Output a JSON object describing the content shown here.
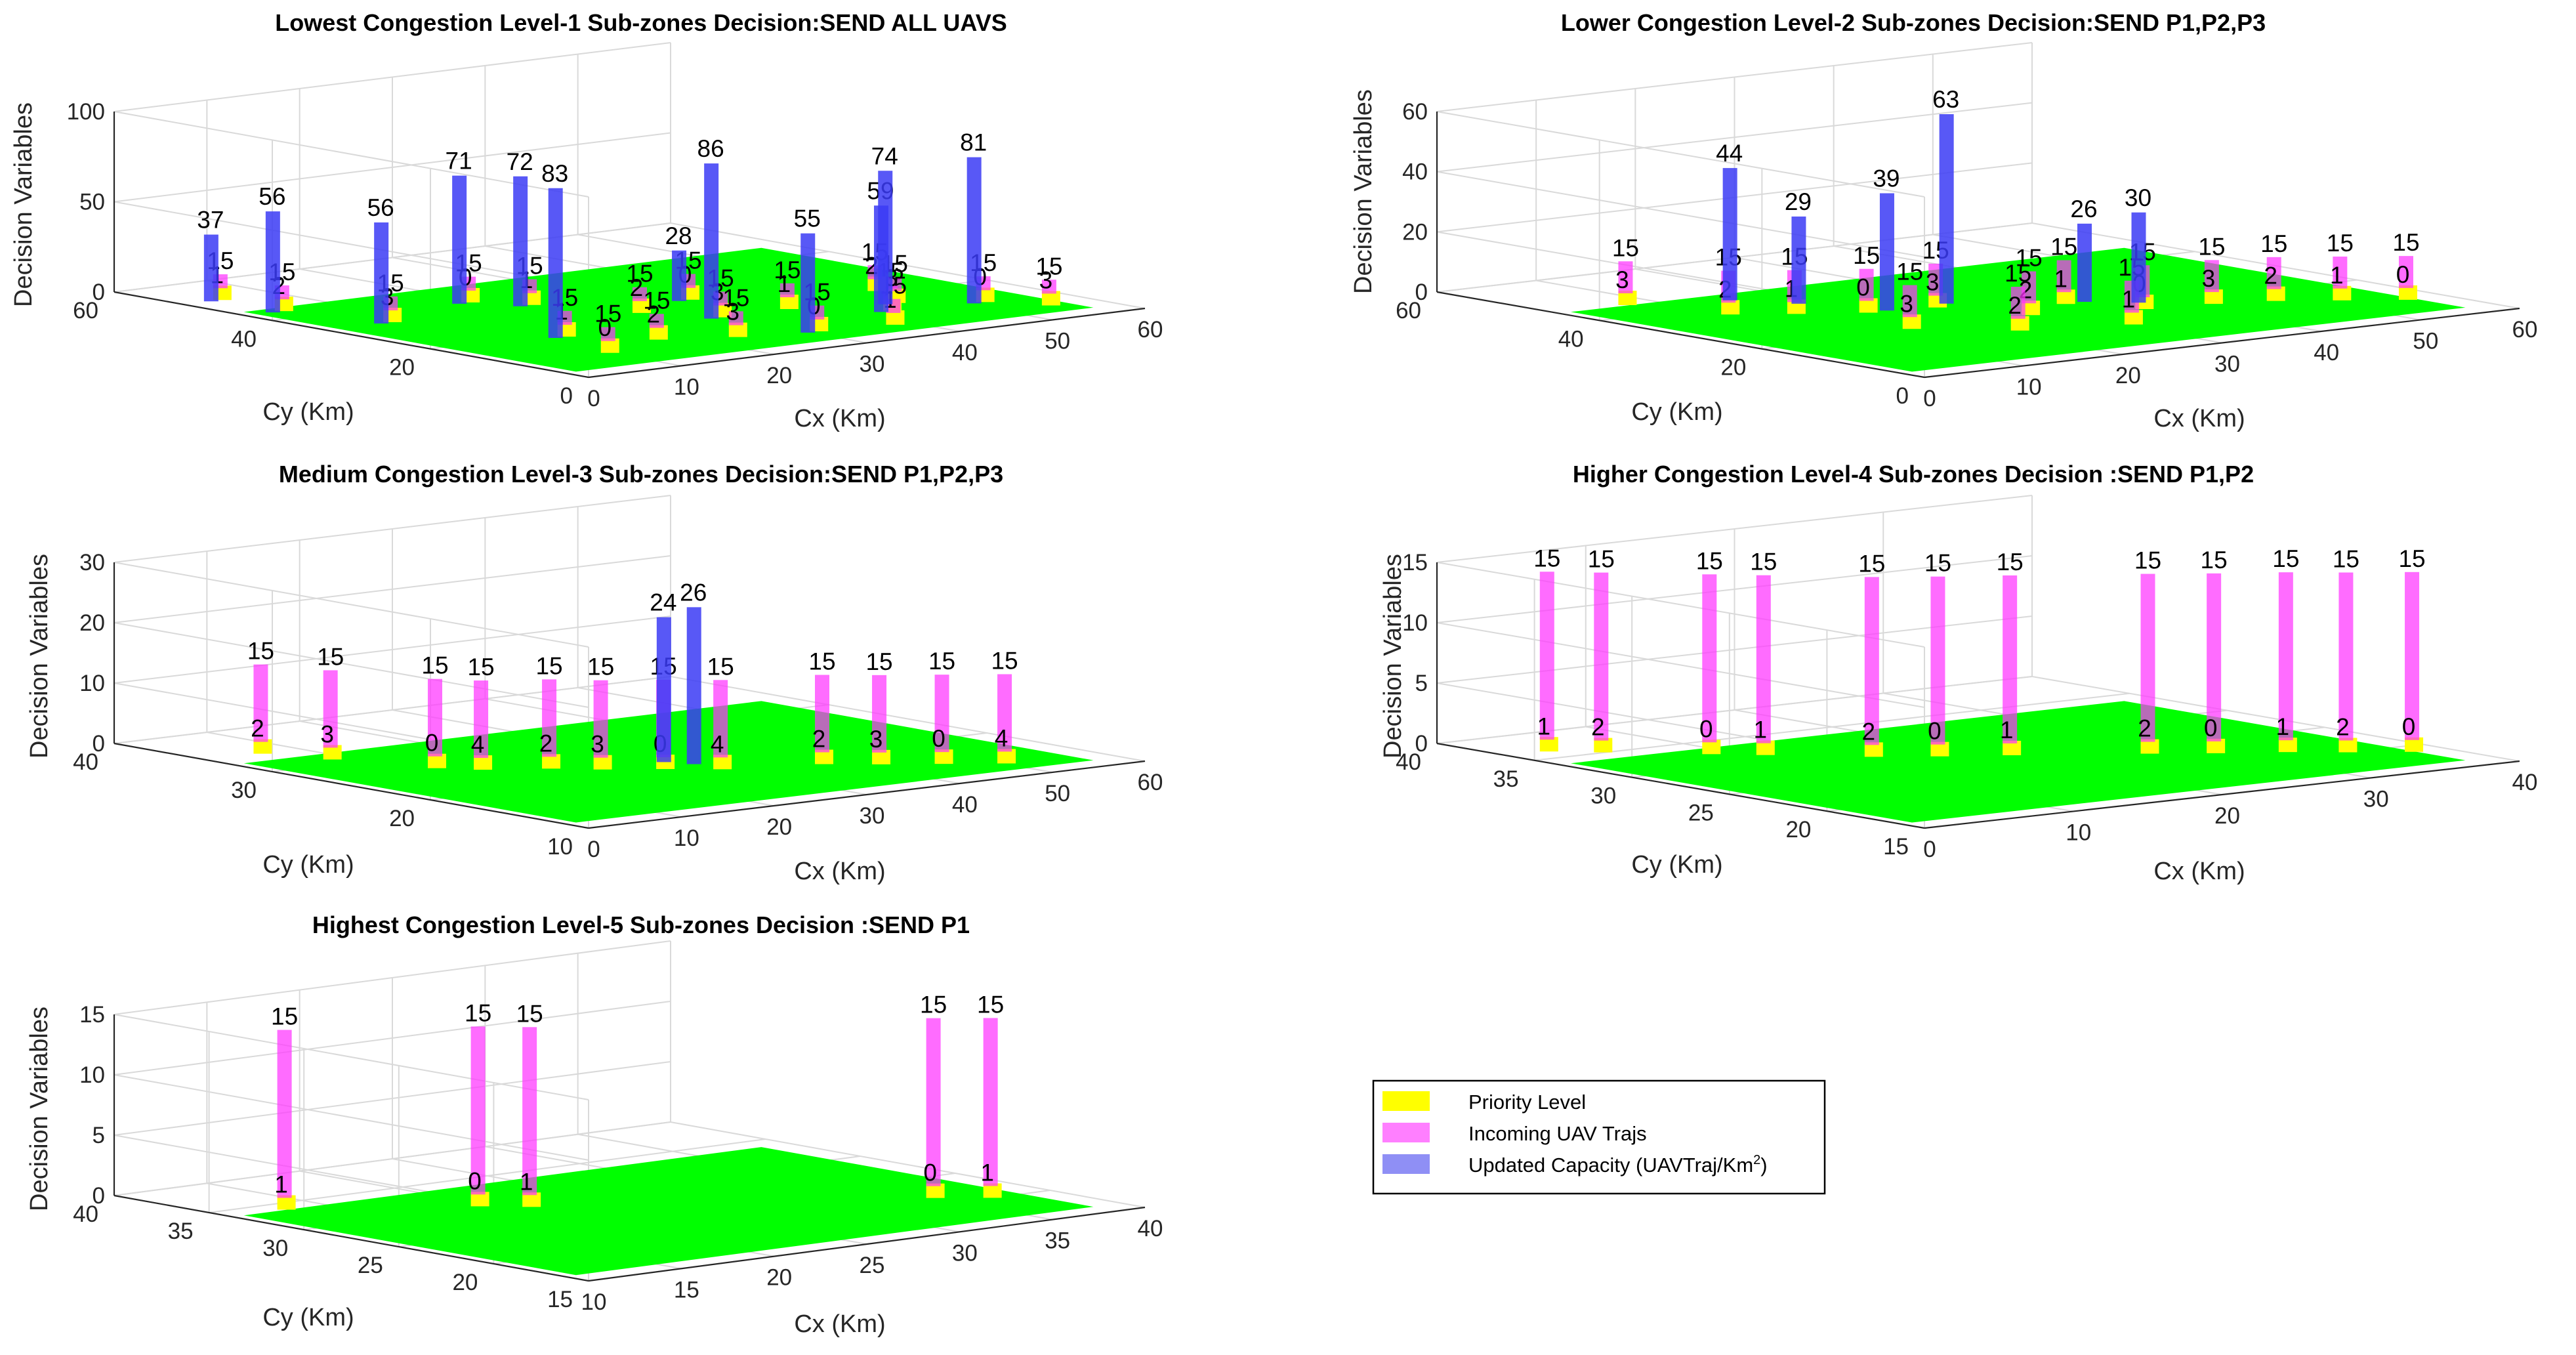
{
  "chart_data": [
    {
      "type": "bar3d",
      "title": "Lowest Congestion Level-1 Sub-zones Decision:SEND ALL UAVS",
      "xlabel": "Cx (Km)",
      "ylabel": "Cy (Km)",
      "zlabel": "Decision Variables",
      "xlim": [
        0,
        60
      ],
      "ylim": [
        0,
        60
      ],
      "zlim": [
        0,
        100
      ],
      "xticks": [
        "0",
        "10",
        "20",
        "30",
        "40",
        "50",
        "60"
      ],
      "yticks": [
        "0",
        "20",
        "40",
        "60"
      ],
      "zticks": [
        "0",
        "50",
        "100"
      ],
      "capacity_labels": [
        "37",
        "56",
        "56",
        "71",
        "72",
        "86",
        "55",
        "28",
        "59",
        "74",
        "81",
        "83"
      ],
      "capacity_values": [
        37,
        56,
        56,
        71,
        72,
        86,
        55,
        28,
        59,
        74,
        81,
        83
      ],
      "traj_label": "15",
      "traj_value": 15,
      "priority_labels": [
        "1",
        "2",
        "3",
        "0"
      ]
    },
    {
      "type": "bar3d",
      "title": "Lower Congestion Level-2 Sub-zones Decision:SEND P1,P2,P3",
      "xlabel": "Cx (Km)",
      "ylabel": "Cy (Km)",
      "zlabel": "Decision Variables",
      "xlim": [
        0,
        60
      ],
      "ylim": [
        0,
        60
      ],
      "zlim": [
        0,
        60
      ],
      "xticks": [
        "0",
        "10",
        "20",
        "30",
        "40",
        "50",
        "60"
      ],
      "yticks": [
        "0",
        "20",
        "40",
        "60"
      ],
      "zticks": [
        "0",
        "20",
        "40",
        "60"
      ],
      "capacity_labels": [
        "44",
        "29",
        "39",
        "63",
        "26",
        "30"
      ],
      "capacity_values": [
        44,
        29,
        39,
        63,
        26,
        30
      ],
      "traj_label": "15",
      "traj_value": 15,
      "priority_labels": [
        "3",
        "2",
        "1",
        "0"
      ]
    },
    {
      "type": "bar3d",
      "title": "Medium Congestion Level-3 Sub-zones Decision:SEND P1,P2,P3",
      "xlabel": "Cx (Km)",
      "ylabel": "Cy (Km)",
      "zlabel": "Decision Variables",
      "xlim": [
        0,
        60
      ],
      "ylim": [
        10,
        40
      ],
      "zlim": [
        0,
        30
      ],
      "xticks": [
        "0",
        "10",
        "20",
        "30",
        "40",
        "50",
        "60"
      ],
      "yticks": [
        "10",
        "20",
        "30",
        "40"
      ],
      "zticks": [
        "0",
        "10",
        "20",
        "30"
      ],
      "capacity_labels": [
        "24",
        "26"
      ],
      "capacity_values": [
        24,
        26
      ],
      "traj_label": "15",
      "traj_value": 15,
      "priority_labels": [
        "2",
        "3",
        "0",
        "4"
      ]
    },
    {
      "type": "bar3d",
      "title": "Higher Congestion Level-4 Sub-zones Decision :SEND P1,P2",
      "xlabel": "Cx (Km)",
      "ylabel": "Cy (Km)",
      "zlabel": "Decision Variables",
      "xlim": [
        0,
        40
      ],
      "ylim": [
        15,
        40
      ],
      "zlim": [
        0,
        15
      ],
      "xticks": [
        "0",
        "10",
        "20",
        "30",
        "40"
      ],
      "yticks": [
        "15",
        "20",
        "25",
        "30",
        "35",
        "40"
      ],
      "zticks": [
        "0",
        "5",
        "10",
        "15"
      ],
      "capacity_labels": [],
      "capacity_values": [],
      "traj_label": "15",
      "traj_value": 15,
      "priority_labels": [
        "1",
        "2",
        "0"
      ]
    },
    {
      "type": "bar3d",
      "title": "Highest Congestion Level-5 Sub-zones Decision :SEND P1",
      "xlabel": "Cx (Km)",
      "ylabel": "Cy (Km)",
      "zlabel": "Decision Variables",
      "xlim": [
        10,
        40
      ],
      "ylim": [
        15,
        40
      ],
      "zlim": [
        0,
        15
      ],
      "xticks": [
        "10",
        "15",
        "20",
        "25",
        "30",
        "35",
        "40"
      ],
      "yticks": [
        "15",
        "20",
        "25",
        "30",
        "35",
        "40"
      ],
      "zticks": [
        "0",
        "5",
        "10",
        "15"
      ],
      "capacity_labels": [],
      "capacity_values": [],
      "traj_label": "15",
      "traj_value": 15,
      "priority_labels": [
        "1",
        "0"
      ]
    }
  ],
  "legend": {
    "items": [
      {
        "label": "Priority Level",
        "color": "#ffff00"
      },
      {
        "label": "Incoming UAV Trajs",
        "color": "#ff7fff"
      },
      {
        "label": "Updated Capacity (UAVTraj/Km",
        "sup": "2",
        "tail": ")",
        "color": "#8f8ff5"
      }
    ]
  },
  "colors": {
    "ground": "#00ff00",
    "traj": "#ff33ff",
    "capacity": "#3b3bf5",
    "priority": "#ffff00"
  }
}
